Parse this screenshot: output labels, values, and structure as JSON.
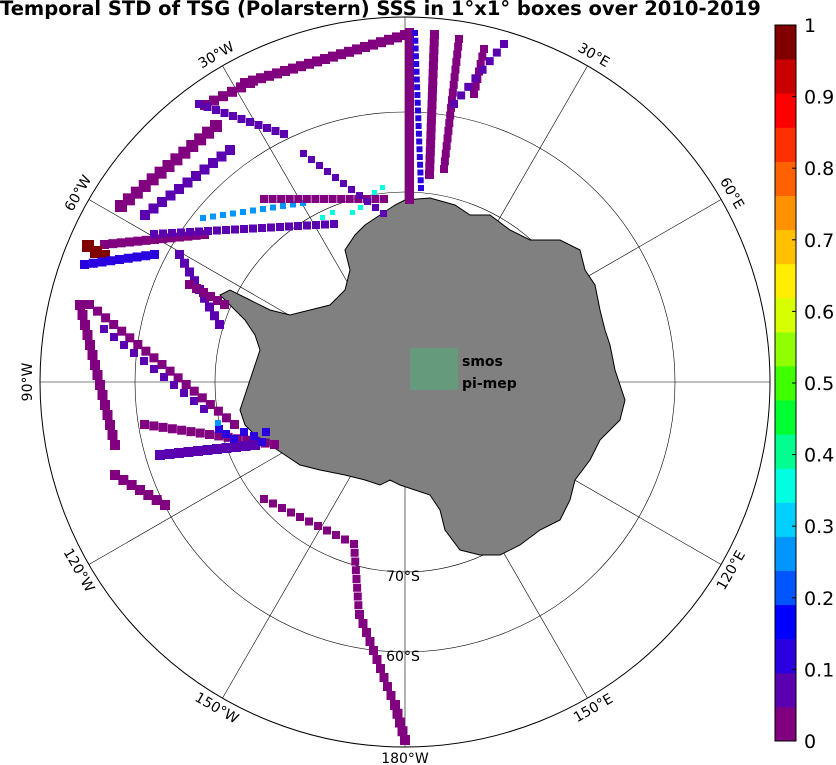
{
  "title": "Temporal STD of TSG (Polarstern) SSS in 1°x1° boxes over 2010-2019",
  "map": {
    "projection": "south polar stereographic",
    "longitude_labels": [
      {
        "text": "30°W",
        "lon": -30
      },
      {
        "text": "30°E",
        "lon": 30
      },
      {
        "text": "60°W",
        "lon": -60
      },
      {
        "text": "60°E",
        "lon": 60
      },
      {
        "text": "90°W",
        "lon": -90
      },
      {
        "text": "120°W",
        "lon": -120
      },
      {
        "text": "120°E",
        "lon": 120
      },
      {
        "text": "150°W",
        "lon": -150
      },
      {
        "text": "150°E",
        "lon": 150
      },
      {
        "text": "180°W",
        "lon": 180
      }
    ],
    "latitude_labels": [
      {
        "text": "70°S",
        "lat": -70
      },
      {
        "text": "60°S",
        "lat": -60
      }
    ],
    "land_color": "#808080",
    "ocean_color": "#ffffff"
  },
  "logo": {
    "line1": "smos",
    "line2": "pi-mep",
    "color": "#3a8c5c"
  },
  "colorbar": {
    "min": 0,
    "max": 1,
    "tick_labels": [
      "0",
      "0.1",
      "0.2",
      "0.3",
      "0.4",
      "0.5",
      "0.6",
      "0.7",
      "0.8",
      "0.9",
      "1"
    ],
    "colors": [
      "#800080",
      "#5a00b0",
      "#2a00e0",
      "#0000ff",
      "#0055ff",
      "#0095ff",
      "#00cfff",
      "#00ffe0",
      "#00ff90",
      "#00ff30",
      "#40ff00",
      "#90ff00",
      "#d8ff00",
      "#ffee00",
      "#ffc000",
      "#ff9000",
      "#ff6000",
      "#ff3000",
      "#ff0000",
      "#c80000",
      "#800000"
    ]
  }
}
